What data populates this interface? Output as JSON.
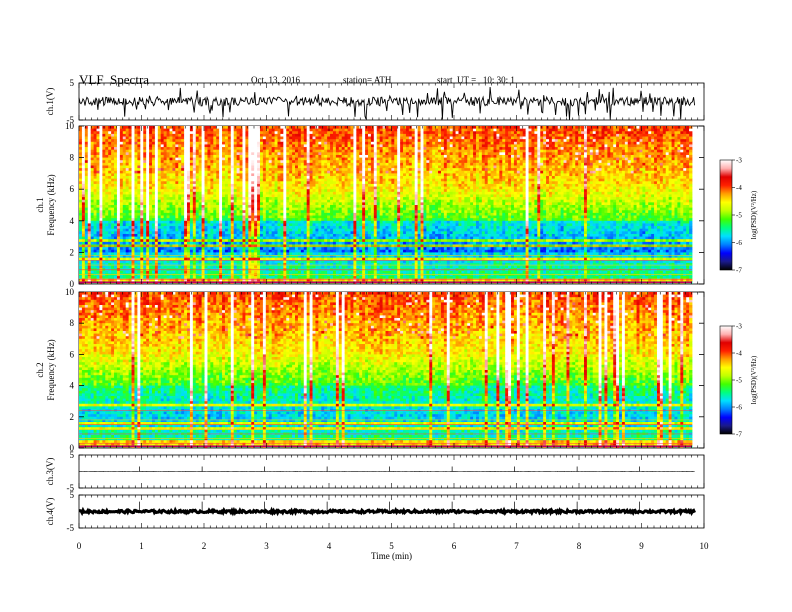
{
  "header": {
    "title": "VLF  Spectra",
    "date": "Oct. 13, 2016",
    "station": "station= ATH",
    "start_time": "start  UT =   10: 30: 1"
  },
  "chart_data": [
    {
      "type": "line",
      "name": "ch1-waveform",
      "ylabel": "ch.1(V)",
      "y_ticks": [
        "5",
        "-5"
      ],
      "ylim": [
        -5,
        5
      ],
      "xlim": [
        0,
        10
      ],
      "baseline": 0,
      "amplitude_typical": 1.2,
      "spikes": "frequent impulsive spikes toward -5 V",
      "color": "#000000"
    },
    {
      "type": "heatmap",
      "name": "ch1-spectrogram",
      "ylabel": "ch.1\nFrequency  (kHz)",
      "y_ticks": [
        "0",
        "2",
        "4",
        "6",
        "8",
        "10"
      ],
      "ylim": [
        0,
        10
      ],
      "xlim": [
        0,
        9.85
      ],
      "colorbar": {
        "label": "log(PSD)(V²/Hz)",
        "ticks": [
          "-3",
          "-4",
          "-5",
          "-6",
          "-7"
        ],
        "range": [
          -7,
          -3
        ]
      }
    },
    {
      "type": "heatmap",
      "name": "ch2-spectrogram",
      "ylabel": "ch.2\nFrequency  (kHz)",
      "y_ticks": [
        "0",
        "2",
        "4",
        "6",
        "8",
        "10"
      ],
      "ylim": [
        0,
        10
      ],
      "xlim": [
        0,
        9.85
      ],
      "colorbar": {
        "label": "log(PSD)(V²/Hz)",
        "ticks": [
          "-3",
          "-4",
          "-5",
          "-6",
          "-7"
        ],
        "range": [
          -7,
          -3
        ]
      }
    },
    {
      "type": "line",
      "name": "ch3-waveform",
      "ylabel": "ch.3(V)",
      "y_ticks": [
        "5",
        "-5"
      ],
      "ylim": [
        -5,
        5
      ],
      "xlim": [
        0,
        10
      ],
      "baseline": 0,
      "amplitude_typical": 0.05,
      "color": "#000000"
    },
    {
      "type": "line",
      "name": "ch4-waveform",
      "ylabel": "ch.4(V)",
      "y_ticks": [
        "5",
        "-5"
      ],
      "ylim": [
        -5,
        5
      ],
      "xlim": [
        0,
        10
      ],
      "baseline": 0,
      "amplitude_typical": 0.4,
      "color": "#000000"
    }
  ],
  "x_axis": {
    "label": "Time  (min)",
    "ticks": [
      "0",
      "1",
      "2",
      "3",
      "4",
      "5",
      "6",
      "7",
      "8",
      "9",
      "10"
    ],
    "range": [
      0,
      10
    ]
  },
  "colormap": [
    "#000000",
    "#1a1a8c",
    "#0000ff",
    "#0080ff",
    "#00e0ff",
    "#00ff80",
    "#40ff00",
    "#c0ff00",
    "#ffff00",
    "#ffa000",
    "#ff2000",
    "#e00000",
    "#ffb0b0",
    "#ffffff"
  ]
}
